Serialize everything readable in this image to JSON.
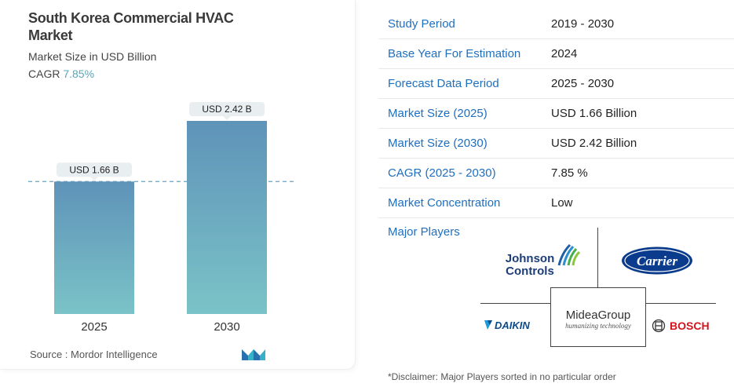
{
  "chart_data": {
    "type": "bar",
    "title": "South Korea Commercial HVAC Market",
    "subtitle": "Market Size in USD Billion",
    "cagr_label": "CAGR",
    "cagr_value": "7.85%",
    "categories": [
      "2025",
      "2030"
    ],
    "values": [
      1.66,
      2.42
    ],
    "data_labels": [
      "USD 1.66 B",
      "USD 2.42 B"
    ],
    "ylim": [
      0,
      2.42
    ],
    "grid": false,
    "reference_line_value": 1.66,
    "bar_color_top": "#5f93b9",
    "bar_color_bottom": "#7ac3c7"
  },
  "source": "Source :  Mordor Intelligence",
  "table": [
    {
      "key": "Study Period",
      "value": "2019 - 2030"
    },
    {
      "key": "Base Year For Estimation",
      "value": "2024"
    },
    {
      "key": "Forecast Data Period",
      "value": "2025 - 2030"
    },
    {
      "key": "Market Size (2025)",
      "value": "USD 1.66 Billion"
    },
    {
      "key": "Market Size (2030)",
      "value": "USD 2.42 Billion"
    },
    {
      "key": "CAGR (2025 - 2030)",
      "value": "7.85 %"
    },
    {
      "key": "Market Concentration",
      "value": "Low"
    }
  ],
  "players_label": "Major Players",
  "players": {
    "johnson_line1": "Johnson",
    "johnson_line2": "Controls",
    "carrier": "Carrier",
    "daikin": "DAIKIN",
    "midea": "MideaGroup",
    "midea_tagline": "humanizing technology",
    "bosch": "BOSCH"
  },
  "disclaimer": "*Disclaimer: Major Players sorted in no particular order",
  "colors": {
    "key_text": "#1f6fbf",
    "accent": "#5aa5b8"
  }
}
